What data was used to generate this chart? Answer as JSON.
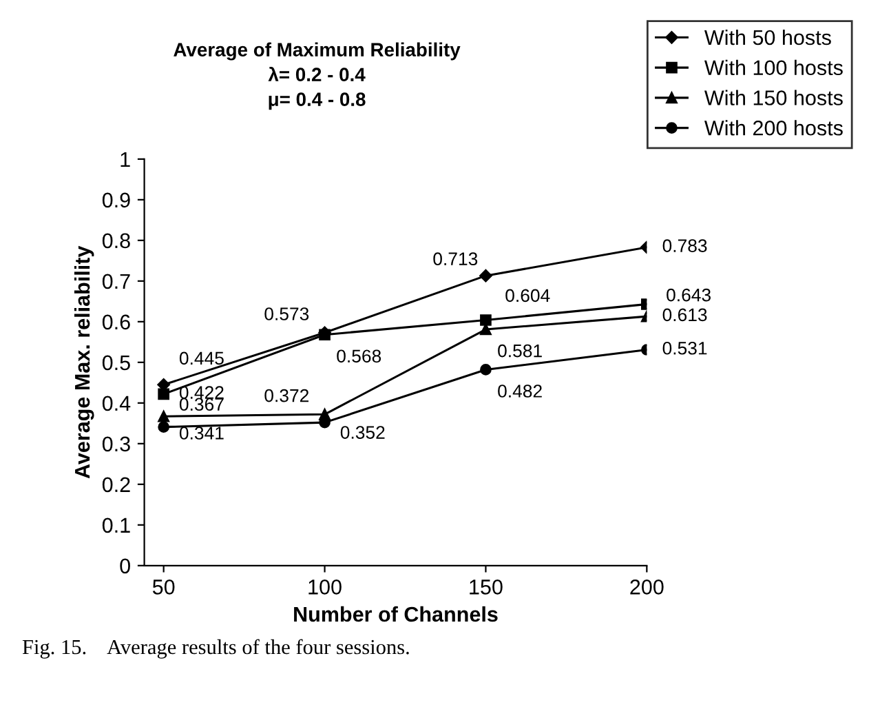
{
  "chart_data": {
    "type": "line",
    "title": "Average of Maximum Reliability\nλ= 0.2 - 0.4\nμ= 0.4 - 0.8",
    "xlabel": "Number of Channels",
    "ylabel": "Average Max. reliability",
    "x": [
      50,
      100,
      150,
      200
    ],
    "series": [
      {
        "name": "With 50 hosts",
        "color": "#000000",
        "marker": "diamond",
        "values": [
          0.445,
          0.573,
          0.713,
          0.783
        ]
      },
      {
        "name": "With 100 hosts",
        "color": "#000000",
        "marker": "square",
        "values": [
          0.422,
          0.568,
          0.604,
          0.643
        ]
      },
      {
        "name": "With 150 hosts",
        "color": "#000000",
        "marker": "triangle",
        "values": [
          0.367,
          0.372,
          0.581,
          0.613
        ]
      },
      {
        "name": "With 200 hosts",
        "color": "#000000",
        "marker": "circle",
        "values": [
          0.341,
          0.352,
          0.482,
          0.531
        ]
      }
    ],
    "xlim": [
      44,
      200
    ],
    "xticks": [
      50,
      100,
      150,
      200
    ],
    "ylim": [
      0,
      1
    ],
    "yticks": [
      0,
      0.1,
      0.2,
      0.3,
      0.4,
      0.5,
      0.6,
      0.7,
      0.8,
      0.9,
      1
    ],
    "data_labels": true,
    "legend": "top right",
    "grid": false,
    "annotations": [
      "Fig. 15.    Average results of the four sessions."
    ]
  }
}
